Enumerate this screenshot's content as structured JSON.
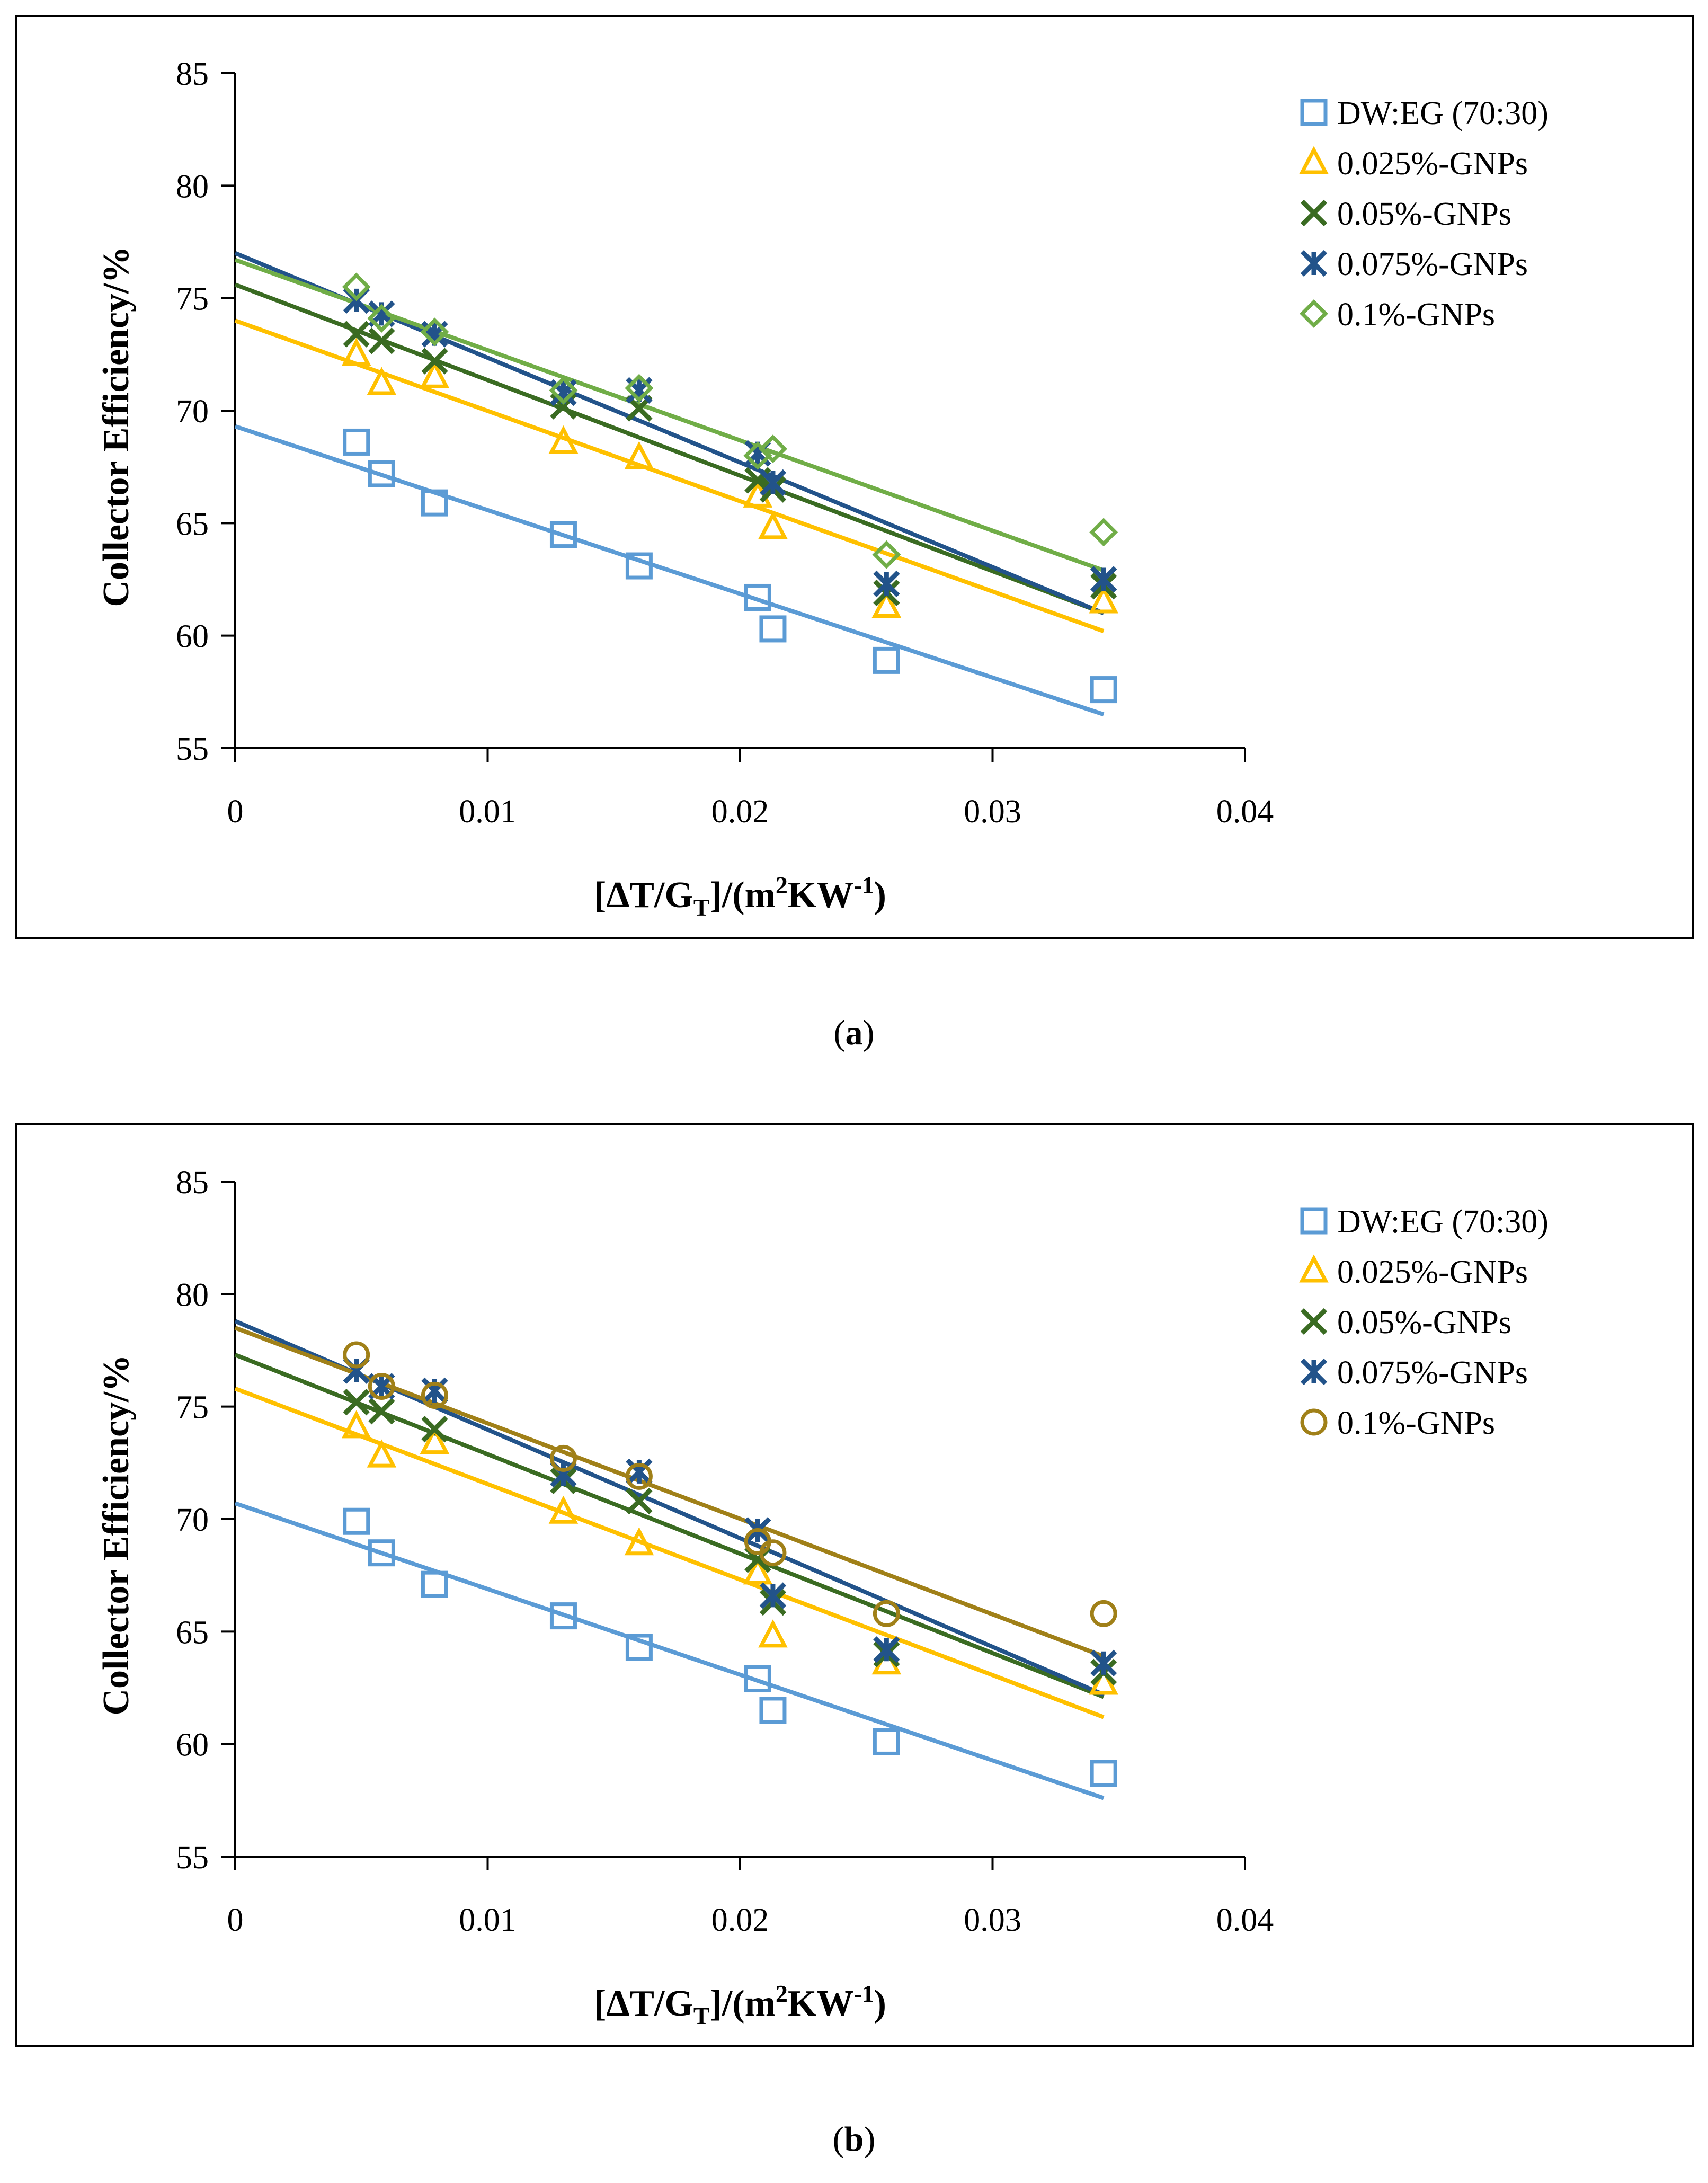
{
  "colors": {
    "blue": "#5b9bd5",
    "yellow": "#ffc000",
    "darkgreen": "#3a6b22",
    "navy": "#22538a",
    "lightgreen": "#70ad47",
    "olive": "#a08018"
  },
  "chart_data": [
    {
      "type": "scatter",
      "panel": "a",
      "caption_open": "(",
      "caption_letter": "a",
      "caption_close": ")",
      "xlabel_main": "[ΔT/G",
      "xlabel_sub": "T",
      "xlabel_mid": "]/(m",
      "xlabel_sup1": "2",
      "xlabel_mid2": "KW",
      "xlabel_sup2": "-1",
      "xlabel_end": ")",
      "ylabel": "Collector  Efficiency/%",
      "xlim": [
        0,
        0.04
      ],
      "ylim": [
        55,
        85
      ],
      "xticks": [
        0,
        0.01,
        0.02,
        0.03,
        0.04
      ],
      "xtick_labels": [
        "0",
        "0.01",
        "0.02",
        "0.03",
        "0.04"
      ],
      "yticks": [
        55,
        60,
        65,
        70,
        75,
        80,
        85
      ],
      "ytick_labels": [
        "55",
        "60",
        "65",
        "70",
        "75",
        "80",
        "85"
      ],
      "legend_position": "top-right",
      "series": [
        {
          "name": "DW:EG (70:30)",
          "marker": "square",
          "color": "#5b9bd5",
          "x": [
            0.0048,
            0.0058,
            0.0079,
            0.013,
            0.016,
            0.0207,
            0.0213,
            0.0258,
            0.0344
          ],
          "y": [
            68.6,
            67.2,
            65.9,
            64.5,
            63.1,
            61.7,
            60.3,
            58.9,
            57.6
          ],
          "fit": {
            "x": [
              0,
              0.0344
            ],
            "y": [
              69.3,
              56.5
            ]
          }
        },
        {
          "name": "0.025%-GNPs",
          "marker": "triangle",
          "color": "#ffc000",
          "x": [
            0.0048,
            0.0058,
            0.0079,
            0.013,
            0.016,
            0.0207,
            0.0213,
            0.0258,
            0.0344
          ],
          "y": [
            72.5,
            71.2,
            71.5,
            68.6,
            67.9,
            66.2,
            64.8,
            61.3,
            61.5
          ],
          "fit": {
            "x": [
              0,
              0.0344
            ],
            "y": [
              74.0,
              60.2
            ]
          }
        },
        {
          "name": "0.05%-GNPs",
          "marker": "x",
          "color": "#3a6b22",
          "x": [
            0.0048,
            0.0058,
            0.0079,
            0.013,
            0.016,
            0.0207,
            0.0213,
            0.0258,
            0.0344
          ],
          "y": [
            73.4,
            73.1,
            72.2,
            70.2,
            70.1,
            66.9,
            66.5,
            61.9,
            62.2
          ],
          "fit": {
            "x": [
              0,
              0.0344
            ],
            "y": [
              75.6,
              61.0
            ]
          }
        },
        {
          "name": "0.075%-GNPs",
          "marker": "star",
          "color": "#22538a",
          "x": [
            0.0048,
            0.0058,
            0.0079,
            0.013,
            0.016,
            0.0207,
            0.0213,
            0.0258,
            0.0344
          ],
          "y": [
            74.9,
            74.3,
            73.4,
            70.8,
            70.9,
            68.1,
            66.8,
            62.3,
            62.5
          ],
          "fit": {
            "x": [
              0,
              0.0344
            ],
            "y": [
              77.0,
              61.0
            ]
          }
        },
        {
          "name": "0.1%-GNPs",
          "marker": "diamond",
          "color": "#70ad47",
          "x": [
            0.0048,
            0.0058,
            0.0079,
            0.013,
            0.016,
            0.0207,
            0.0213,
            0.0258,
            0.0344
          ],
          "y": [
            75.5,
            74.1,
            73.5,
            70.9,
            71.0,
            68.0,
            68.3,
            63.6,
            64.6
          ],
          "fit": {
            "x": [
              0,
              0.0344
            ],
            "y": [
              76.7,
              62.9
            ]
          }
        }
      ]
    },
    {
      "type": "scatter",
      "panel": "b",
      "caption_open": "(",
      "caption_letter": "b",
      "caption_close": ")",
      "xlabel_main": "[ΔT/G",
      "xlabel_sub": "T",
      "xlabel_mid": "]/(m",
      "xlabel_sup1": "2",
      "xlabel_mid2": "KW",
      "xlabel_sup2": "-1",
      "xlabel_end": ")",
      "ylabel": "Collector  Efficiency/%",
      "xlim": [
        0,
        0.04
      ],
      "ylim": [
        55,
        85
      ],
      "xticks": [
        0,
        0.01,
        0.02,
        0.03,
        0.04
      ],
      "xtick_labels": [
        "0",
        "0.01",
        "0.02",
        "0.03",
        "0.04"
      ],
      "yticks": [
        55,
        60,
        65,
        70,
        75,
        80,
        85
      ],
      "ytick_labels": [
        "55",
        "60",
        "65",
        "70",
        "75",
        "80",
        "85"
      ],
      "legend_position": "top-right",
      "series": [
        {
          "name": "DW:EG (70:30)",
          "marker": "square",
          "color": "#5b9bd5",
          "x": [
            0.0048,
            0.0058,
            0.0079,
            0.013,
            0.016,
            0.0207,
            0.0213,
            0.0258,
            0.0344
          ],
          "y": [
            69.9,
            68.5,
            67.1,
            65.7,
            64.3,
            62.9,
            61.5,
            60.1,
            58.7
          ],
          "fit": {
            "x": [
              0,
              0.0344
            ],
            "y": [
              70.7,
              57.6
            ]
          }
        },
        {
          "name": "0.025%-GNPs",
          "marker": "triangle",
          "color": "#ffc000",
          "x": [
            0.0048,
            0.0058,
            0.0079,
            0.013,
            0.016,
            0.0207,
            0.0213,
            0.0258,
            0.0344
          ],
          "y": [
            74.1,
            72.8,
            73.4,
            70.3,
            68.9,
            67.6,
            64.8,
            63.6,
            62.7
          ],
          "fit": {
            "x": [
              0,
              0.0344
            ],
            "y": [
              75.8,
              61.2
            ]
          }
        },
        {
          "name": "0.05%-GNPs",
          "marker": "x",
          "color": "#3a6b22",
          "x": [
            0.0048,
            0.0058,
            0.0079,
            0.013,
            0.016,
            0.0207,
            0.0213,
            0.0258,
            0.0344
          ],
          "y": [
            75.2,
            74.8,
            74.0,
            71.7,
            70.8,
            68.2,
            66.3,
            64.0,
            63.2
          ],
          "fit": {
            "x": [
              0,
              0.0344
            ],
            "y": [
              77.3,
              62.1
            ]
          }
        },
        {
          "name": "0.075%-GNPs",
          "marker": "star",
          "color": "#22538a",
          "x": [
            0.0048,
            0.0058,
            0.0079,
            0.013,
            0.016,
            0.0207,
            0.0213,
            0.0258,
            0.0344
          ],
          "y": [
            76.6,
            75.9,
            75.7,
            72.0,
            72.1,
            69.5,
            66.6,
            64.2,
            63.6
          ],
          "fit": {
            "x": [
              0,
              0.0344
            ],
            "y": [
              78.8,
              62.2
            ]
          }
        },
        {
          "name": "0.1%-GNPs",
          "marker": "circle",
          "color": "#a08018",
          "x": [
            0.0048,
            0.0058,
            0.0079,
            0.013,
            0.016,
            0.0207,
            0.0213,
            0.0258,
            0.0344
          ],
          "y": [
            77.3,
            75.9,
            75.5,
            72.7,
            71.9,
            69.0,
            68.5,
            65.8,
            65.8
          ],
          "fit": {
            "x": [
              0,
              0.0344
            ],
            "y": [
              78.5,
              63.9
            ]
          }
        }
      ]
    }
  ]
}
